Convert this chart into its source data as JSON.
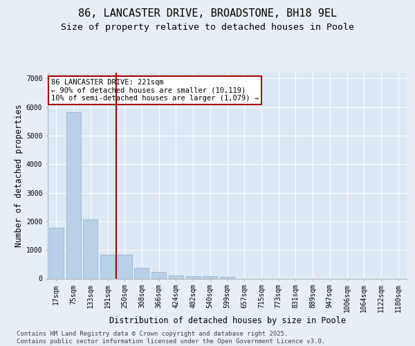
{
  "title": "86, LANCASTER DRIVE, BROADSTONE, BH18 9EL",
  "subtitle": "Size of property relative to detached houses in Poole",
  "xlabel": "Distribution of detached houses by size in Poole",
  "ylabel": "Number of detached properties",
  "categories": [
    "17sqm",
    "75sqm",
    "133sqm",
    "191sqm",
    "250sqm",
    "308sqm",
    "366sqm",
    "424sqm",
    "482sqm",
    "540sqm",
    "599sqm",
    "657sqm",
    "715sqm",
    "773sqm",
    "831sqm",
    "889sqm",
    "947sqm",
    "1006sqm",
    "1064sqm",
    "1122sqm",
    "1180sqm"
  ],
  "values": [
    1790,
    5820,
    2080,
    830,
    830,
    370,
    230,
    110,
    80,
    80,
    55,
    0,
    0,
    0,
    0,
    0,
    0,
    0,
    0,
    0,
    0
  ],
  "bar_color": "#b8d0e8",
  "bar_edge_color": "#8ab0d0",
  "vline_position": 3.5,
  "vline_color": "#aa0000",
  "annotation_text": "86 LANCASTER DRIVE: 221sqm\n← 90% of detached houses are smaller (10,119)\n10% of semi-detached houses are larger (1,079) →",
  "annotation_box_color": "#aa0000",
  "annotation_fill": "#ffffff",
  "ylim": [
    0,
    7200
  ],
  "yticks": [
    0,
    1000,
    2000,
    3000,
    4000,
    5000,
    6000,
    7000
  ],
  "bg_color": "#e8eef5",
  "plot_bg_color": "#dce8f5",
  "grid_color": "#ffffff",
  "footer_text": "Contains HM Land Registry data © Crown copyright and database right 2025.\nContains public sector information licensed under the Open Government Licence v3.0.",
  "title_fontsize": 11,
  "subtitle_fontsize": 9.5,
  "axis_label_fontsize": 8.5,
  "tick_fontsize": 7,
  "footer_fontsize": 6.5,
  "annotation_fontsize": 7.5
}
